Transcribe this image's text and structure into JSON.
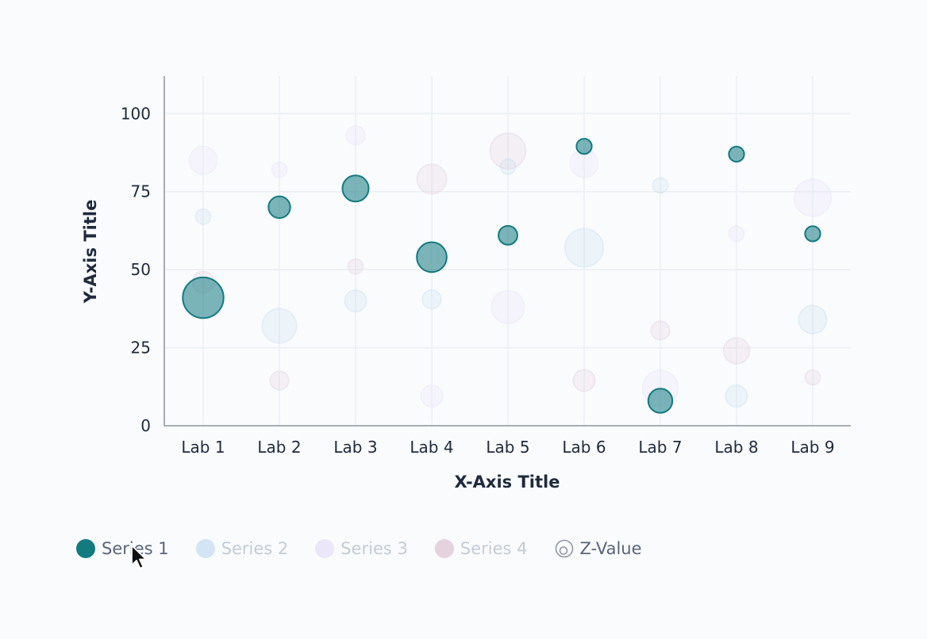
{
  "chart_data": {
    "type": "scatter",
    "subtype": "bubble",
    "categories": [
      "Lab 1",
      "Lab 2",
      "Lab 3",
      "Lab 4",
      "Lab 5",
      "Lab 6",
      "Lab 7",
      "Lab 8",
      "Lab 9"
    ],
    "xlabel": "X-Axis Title",
    "ylabel": "Y-Axis Title",
    "ylim": [
      0,
      112
    ],
    "yticks": [
      0,
      25,
      50,
      75,
      100
    ],
    "grid": true,
    "legend_position": "bottom-left",
    "series": [
      {
        "name": "Series 1",
        "color": "#137a80",
        "active": true,
        "points": [
          {
            "x": "Lab 1",
            "y": 41,
            "z": 60
          },
          {
            "x": "Lab 2",
            "y": 70,
            "z": 12
          },
          {
            "x": "Lab 3",
            "y": 76,
            "z": 20
          },
          {
            "x": "Lab 4",
            "y": 54,
            "z": 28
          },
          {
            "x": "Lab 5",
            "y": 61,
            "z": 8
          },
          {
            "x": "Lab 6",
            "y": 89.5,
            "z": 4
          },
          {
            "x": "Lab 7",
            "y": 8,
            "z": 16
          },
          {
            "x": "Lab 8",
            "y": 87,
            "z": 4
          },
          {
            "x": "Lab 9",
            "y": 61.5,
            "z": 4
          }
        ]
      },
      {
        "name": "Series 2",
        "color": "#b9d6ec",
        "active": false,
        "points": [
          {
            "x": "Lab 1",
            "y": 67,
            "z": 4
          },
          {
            "x": "Lab 2",
            "y": 32,
            "z": 40
          },
          {
            "x": "Lab 3",
            "y": 40,
            "z": 12
          },
          {
            "x": "Lab 4",
            "y": 40.5,
            "z": 8
          },
          {
            "x": "Lab 5",
            "y": 83,
            "z": 4
          },
          {
            "x": "Lab 6",
            "y": 57,
            "z": 52
          },
          {
            "x": "Lab 7",
            "y": 77,
            "z": 4
          },
          {
            "x": "Lab 8",
            "y": 9.5,
            "z": 12
          },
          {
            "x": "Lab 9",
            "y": 34,
            "z": 24
          }
        ]
      },
      {
        "name": "Series 3",
        "color": "#e5dcf8",
        "active": false,
        "points": [
          {
            "x": "Lab 1",
            "y": 85,
            "z": 24
          },
          {
            "x": "Lab 2",
            "y": 82,
            "z": 4
          },
          {
            "x": "Lab 3",
            "y": 93,
            "z": 8
          },
          {
            "x": "Lab 4",
            "y": 9.5,
            "z": 12
          },
          {
            "x": "Lab 5",
            "y": 38,
            "z": 36
          },
          {
            "x": "Lab 6",
            "y": 84,
            "z": 24
          },
          {
            "x": "Lab 7",
            "y": 12,
            "z": 44
          },
          {
            "x": "Lab 8",
            "y": 61.5,
            "z": 4
          },
          {
            "x": "Lab 9",
            "y": 73,
            "z": 48
          }
        ]
      },
      {
        "name": "Series 4",
        "color": "#ddc4d6",
        "active": false,
        "points": [
          {
            "x": "Lab 1",
            "y": 46,
            "z": 12
          },
          {
            "x": "Lab 2",
            "y": 14.5,
            "z": 8
          },
          {
            "x": "Lab 3",
            "y": 51,
            "z": 4
          },
          {
            "x": "Lab 4",
            "y": 79,
            "z": 28
          },
          {
            "x": "Lab 5",
            "y": 88,
            "z": 44
          },
          {
            "x": "Lab 6",
            "y": 14.5,
            "z": 12
          },
          {
            "x": "Lab 7",
            "y": 30.5,
            "z": 8
          },
          {
            "x": "Lab 8",
            "y": 24,
            "z": 20
          },
          {
            "x": "Lab 9",
            "y": 15.5,
            "z": 4
          }
        ]
      }
    ]
  },
  "legend": {
    "items": [
      {
        "label": "Series 1",
        "color": "#137a80",
        "active": true
      },
      {
        "label": "Series 2",
        "color": "#d3e5f4",
        "active": false
      },
      {
        "label": "Series 3",
        "color": "#ece6fa",
        "active": false
      },
      {
        "label": "Series 4",
        "color": "#e5d2df",
        "active": false
      }
    ],
    "zvalue_label": "Z-Value",
    "zvalue_icon": "concentric-circles-icon"
  },
  "cursor": {
    "icon": "mouse-pointer-icon"
  }
}
